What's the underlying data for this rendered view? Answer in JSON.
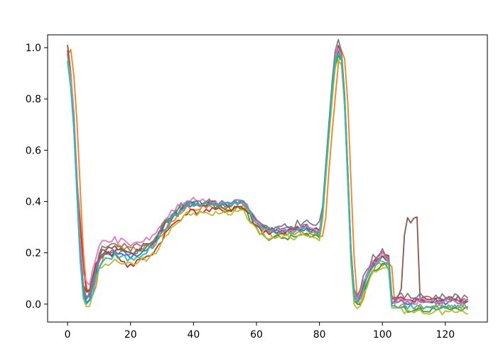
{
  "chart_data": {
    "type": "line",
    "title": "",
    "xlabel": "",
    "ylabel": "",
    "xlim": [
      -6.35,
      133.35
    ],
    "ylim": [
      -0.07,
      1.05
    ],
    "xticks": [
      0,
      20,
      40,
      60,
      80,
      100,
      120
    ],
    "yticks": [
      0.0,
      0.2,
      0.4,
      0.6,
      0.8,
      1.0
    ],
    "xtick_labels": [
      "0",
      "20",
      "40",
      "60",
      "80",
      "100",
      "120"
    ],
    "ytick_labels": [
      "0.0",
      "0.2",
      "0.4",
      "0.6",
      "0.8",
      "1.0"
    ],
    "grid": false,
    "legend": "none",
    "series_colors": [
      "#1f77b4",
      "#ff7f0e",
      "#2ca02c",
      "#d62728",
      "#9467bd",
      "#8c564b",
      "#e377c2",
      "#7f7f7f",
      "#bcbd22",
      "#17becf"
    ],
    "base_curve": {
      "x": [
        0,
        1,
        2,
        3,
        4,
        5,
        6,
        7,
        8,
        9,
        10,
        11,
        12,
        13,
        14,
        15,
        16,
        17,
        18,
        19,
        20,
        21,
        22,
        23,
        24,
        25,
        26,
        27,
        28,
        29,
        30,
        31,
        32,
        33,
        34,
        35,
        36,
        37,
        38,
        39,
        40,
        41,
        42,
        43,
        44,
        45,
        46,
        47,
        48,
        49,
        50,
        51,
        52,
        53,
        54,
        55,
        56,
        57,
        58,
        59,
        60,
        61,
        62,
        63,
        64,
        65,
        66,
        67,
        68,
        69,
        70,
        71,
        72,
        73,
        74,
        75,
        76,
        77,
        78,
        79,
        80,
        81,
        82,
        83,
        84,
        85,
        86,
        87,
        88,
        89,
        90,
        91,
        92,
        93,
        94,
        95,
        96,
        97,
        98,
        99,
        100,
        101,
        102,
        103,
        104,
        105,
        106,
        107,
        108,
        109,
        110,
        111,
        112,
        113,
        114,
        115,
        116,
        117,
        118,
        119,
        120,
        121,
        122,
        123,
        124,
        125,
        126,
        127
      ],
      "y": [
        0.98,
        0.88,
        0.7,
        0.45,
        0.2,
        0.06,
        0.02,
        0.03,
        0.07,
        0.13,
        0.17,
        0.19,
        0.2,
        0.2,
        0.2,
        0.21,
        0.2,
        0.2,
        0.2,
        0.19,
        0.19,
        0.19,
        0.2,
        0.2,
        0.21,
        0.21,
        0.22,
        0.23,
        0.24,
        0.26,
        0.28,
        0.3,
        0.31,
        0.33,
        0.34,
        0.35,
        0.36,
        0.37,
        0.38,
        0.38,
        0.38,
        0.38,
        0.38,
        0.38,
        0.38,
        0.38,
        0.38,
        0.38,
        0.38,
        0.38,
        0.38,
        0.38,
        0.38,
        0.39,
        0.39,
        0.39,
        0.38,
        0.37,
        0.35,
        0.33,
        0.31,
        0.3,
        0.29,
        0.29,
        0.28,
        0.28,
        0.28,
        0.28,
        0.28,
        0.28,
        0.28,
        0.28,
        0.28,
        0.29,
        0.29,
        0.29,
        0.29,
        0.28,
        0.28,
        0.28,
        0.28,
        0.35,
        0.52,
        0.68,
        0.82,
        0.95,
        0.99,
        0.96,
        0.8,
        0.5,
        0.2,
        0.04,
        0.01,
        0.03,
        0.07,
        0.1,
        0.13,
        0.15,
        0.16,
        0.17,
        0.18,
        0.17,
        0.16,
        0.0,
        0.0,
        0.0,
        0.0,
        0.0,
        0.0,
        0.0,
        0.0,
        0.0,
        0.0,
        0.0,
        0.0,
        0.0,
        0.0,
        0.0,
        0.0,
        0.0,
        0.0,
        0.0,
        0.0,
        0.0,
        0.0,
        0.0,
        0.0,
        0.0
      ]
    },
    "series": [
      {
        "color": "#1f77b4",
        "shift": 0,
        "deltas": [
          [
            0,
            -0.01
          ],
          [
            60,
            0.01
          ]
        ],
        "noise": 0.012,
        "seed": 11
      },
      {
        "color": "#ff7f0e",
        "shift": 1,
        "deltas": [
          [
            0,
            0.0
          ],
          [
            22,
            0.02
          ],
          [
            48,
            -0.01
          ]
        ],
        "noise": 0.014,
        "seed": 23
      },
      {
        "color": "#2ca02c",
        "shift": 0,
        "deltas": [
          [
            0,
            -0.01
          ],
          [
            40,
            0.02
          ],
          [
            57,
            -0.02
          ]
        ],
        "noise": 0.012,
        "seed": 37
      },
      {
        "color": "#d62728",
        "shift": 0,
        "deltas": [
          [
            0,
            0.0
          ],
          [
            3,
            0.03
          ],
          [
            4,
            0.12
          ],
          [
            5,
            0.08
          ],
          [
            6,
            0.04
          ],
          [
            19,
            -0.04
          ],
          [
            25,
            -0.03
          ],
          [
            100,
            0.02
          ]
        ],
        "noise": 0.012,
        "seed": 41
      },
      {
        "color": "#9467bd",
        "shift": 0,
        "deltas": [
          [
            0,
            0.0
          ],
          [
            30,
            0.01
          ]
        ],
        "noise": 0.012,
        "seed": 53
      },
      {
        "color": "#8c564b",
        "shift": 0,
        "deltas": [
          [
            0,
            0.02
          ],
          [
            104,
            0.0
          ],
          [
            106,
            0.05
          ],
          [
            107,
            0.28
          ],
          [
            108,
            0.34
          ],
          [
            109,
            0.32
          ],
          [
            110,
            0.34
          ],
          [
            111,
            0.35
          ],
          [
            112,
            0.02
          ]
        ],
        "noise": 0.012,
        "seed": 67
      },
      {
        "color": "#e377c2",
        "shift": 0,
        "deltas": [
          [
            0,
            0.0
          ],
          [
            2,
            0.06
          ],
          [
            55,
            0.01
          ]
        ],
        "noise": 0.012,
        "seed": 71
      },
      {
        "color": "#7f7f7f",
        "shift": 0,
        "deltas": [
          [
            0,
            0.0
          ],
          [
            14,
            0.03
          ],
          [
            64,
            0.01
          ],
          [
            75,
            0.03
          ]
        ],
        "noise": 0.014,
        "seed": 83
      },
      {
        "color": "#bcbd22",
        "shift": 0,
        "deltas": [
          [
            0,
            -0.02
          ],
          [
            8,
            -0.04
          ],
          [
            66,
            -0.02
          ],
          [
            93,
            -0.03
          ]
        ],
        "noise": 0.012,
        "seed": 97
      },
      {
        "color": "#17becf",
        "shift": 0,
        "deltas": [
          [
            0,
            -0.03
          ],
          [
            15,
            -0.02
          ],
          [
            40,
            0.01
          ],
          [
            103,
            -0.01
          ]
        ],
        "noise": 0.01,
        "seed": 101
      }
    ]
  }
}
